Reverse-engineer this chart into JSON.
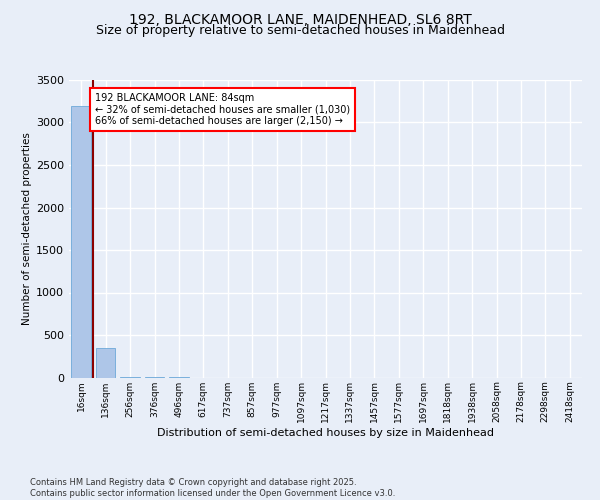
{
  "title_line1": "192, BLACKAMOOR LANE, MAIDENHEAD, SL6 8RT",
  "title_line2": "Size of property relative to semi-detached houses in Maidenhead",
  "xlabel": "Distribution of semi-detached houses by size in Maidenhead",
  "ylabel": "Number of semi-detached properties",
  "footer": "Contains HM Land Registry data © Crown copyright and database right 2025.\nContains public sector information licensed under the Open Government Licence v3.0.",
  "bin_labels": [
    "16sqm",
    "136sqm",
    "256sqm",
    "376sqm",
    "496sqm",
    "617sqm",
    "737sqm",
    "857sqm",
    "977sqm",
    "1097sqm",
    "1217sqm",
    "1337sqm",
    "1457sqm",
    "1577sqm",
    "1697sqm",
    "1818sqm",
    "1938sqm",
    "2058sqm",
    "2178sqm",
    "2298sqm",
    "2418sqm"
  ],
  "bar_heights": [
    3200,
    350,
    10,
    3,
    1,
    0,
    0,
    0,
    0,
    0,
    0,
    0,
    0,
    0,
    0,
    0,
    0,
    0,
    0,
    0,
    0
  ],
  "bar_color": "#aec6e8",
  "bar_edge_color": "#5a9fd4",
  "vline_color": "#8b0000",
  "annotation_text": "192 BLACKAMOOR LANE: 84sqm\n← 32% of semi-detached houses are smaller (1,030)\n66% of semi-detached houses are larger (2,150) →",
  "ylim": [
    0,
    3500
  ],
  "yticks": [
    0,
    500,
    1000,
    1500,
    2000,
    2500,
    3000,
    3500
  ],
  "background_color": "#e8eef8",
  "plot_background": "#e8eef8",
  "grid_color": "white",
  "title_fontsize": 10,
  "subtitle_fontsize": 9
}
